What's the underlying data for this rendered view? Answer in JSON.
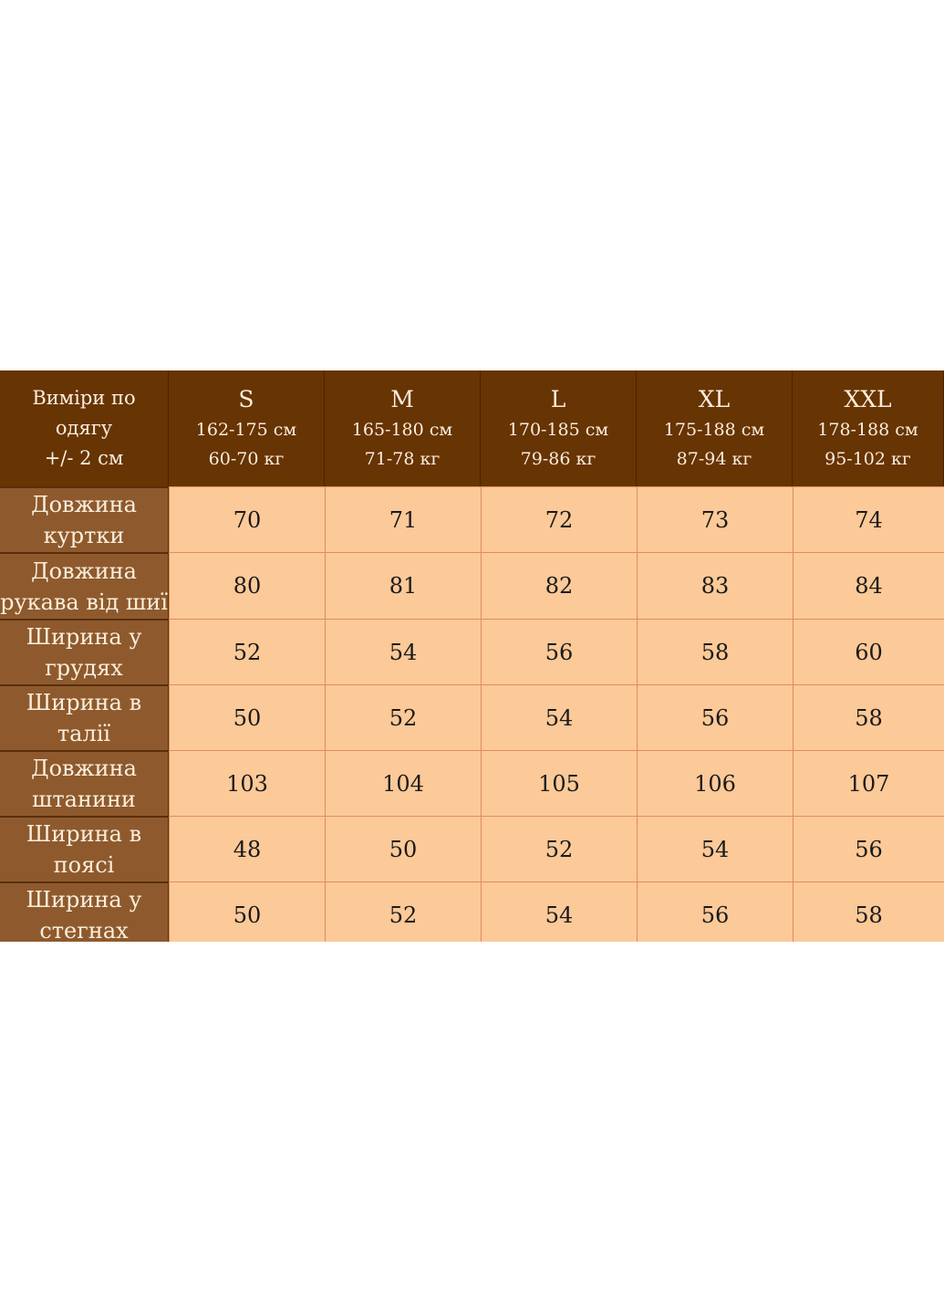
{
  "header": {
    "corner": [
      "Виміри по",
      "одягу",
      "+/- 2 см"
    ],
    "sizes": [
      {
        "size": "S",
        "height": "162-175 см",
        "weight": "60-70 кг"
      },
      {
        "size": "M",
        "height": "165-180 см",
        "weight": "71-78 кг"
      },
      {
        "size": "L",
        "height": "170-185 см",
        "weight": "79-86 кг"
      },
      {
        "size": "XL",
        "height": "175-188 см",
        "weight": "87-94 кг"
      },
      {
        "size": "XXL",
        "height": "178-188 см",
        "weight": "95-102 кг"
      }
    ]
  },
  "rows": [
    {
      "label": [
        "Довжина",
        "куртки"
      ],
      "values": [
        "70",
        "71",
        "72",
        "73",
        "74"
      ]
    },
    {
      "label": [
        "Довжина",
        "рукава від шиї"
      ],
      "values": [
        "80",
        "81",
        "82",
        "83",
        "84"
      ]
    },
    {
      "label": [
        "Ширина у",
        "грудях"
      ],
      "values": [
        "52",
        "54",
        "56",
        "58",
        "60"
      ]
    },
    {
      "label": [
        "Ширина в",
        "талії"
      ],
      "values": [
        "50",
        "52",
        "54",
        "56",
        "58"
      ]
    },
    {
      "label": [
        "Довжина",
        "штанини"
      ],
      "values": [
        "103",
        "104",
        "105",
        "106",
        "107"
      ]
    },
    {
      "label": [
        "Ширина в",
        "поясі"
      ],
      "values": [
        "48",
        "50",
        "52",
        "54",
        "56"
      ]
    },
    {
      "label": [
        "Ширина у",
        "стегнах"
      ],
      "values": [
        "50",
        "52",
        "54",
        "56",
        "58"
      ]
    }
  ],
  "colors": {
    "header_bg": "#673403",
    "label_bg": "#8e5a2d",
    "cell_bg": "#fcc998",
    "border": "#de8d5b"
  }
}
